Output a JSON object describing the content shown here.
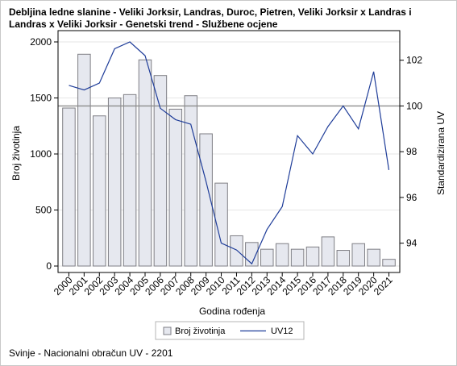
{
  "title": "Debljina ledne slanine - Veliki Jorksir, Landras, Duroc, Pietren, Veliki Jorksir x Landras i Landras x Veliki Jorksir - Genetski trend - Službene ocjene",
  "footnote": "Svinje - Nacionalni obračun UV - 2201",
  "chart_data": {
    "type": "bar",
    "title": "Debljina ledne slanine - Veliki Jorksir, Landras, Duroc, Pietren, Veliki Jorksir x Landras i Landras x Veliki Jorksir - Genetski trend - Službene ocjene",
    "xlabel": "Godina rođenja",
    "ylabel": "Broj životinja",
    "y2label": "Standardizirana UV",
    "categories": [
      "2000",
      "2001",
      "2002",
      "2003",
      "2004",
      "2005",
      "2006",
      "2007",
      "2008",
      "2009",
      "2010",
      "2011",
      "2012",
      "2013",
      "2014",
      "2015",
      "2016",
      "2017",
      "2018",
      "2019",
      "2020",
      "2021"
    ],
    "series": [
      {
        "name": "Broj životinja",
        "type": "bar",
        "axis": "left",
        "values": [
          1410,
          1890,
          1340,
          1500,
          1530,
          1840,
          1700,
          1400,
          1520,
          1180,
          740,
          270,
          210,
          150,
          200,
          150,
          170,
          260,
          140,
          200,
          150,
          60
        ]
      },
      {
        "name": "UV12",
        "type": "line",
        "axis": "right",
        "values": [
          100.9,
          100.7,
          101.0,
          102.5,
          102.8,
          102.2,
          99.9,
          99.4,
          99.2,
          96.7,
          94.0,
          93.7,
          93.1,
          94.6,
          95.6,
          98.7,
          97.9,
          99.1,
          100.0,
          99.0,
          101.5,
          97.2
        ]
      }
    ],
    "ylim": [
      0,
      2000
    ],
    "yticks": [
      "0",
      "500",
      "1000",
      "1500",
      "2000"
    ],
    "y2lim": [
      93.0,
      102.8
    ],
    "y2ticks": [
      "94",
      "96",
      "98",
      "100",
      "102"
    ],
    "reference_line": 100,
    "legend": {
      "placement": "bottom",
      "entries": [
        "Broj životinja",
        "UV12"
      ]
    },
    "colors": {
      "bar_fill": "#e6e8ef",
      "bar_stroke": "#7e7e84",
      "line": "#1f3d99",
      "ref_line": "#8c8c8c",
      "grid": "#e6e6e6"
    },
    "grid": true
  }
}
